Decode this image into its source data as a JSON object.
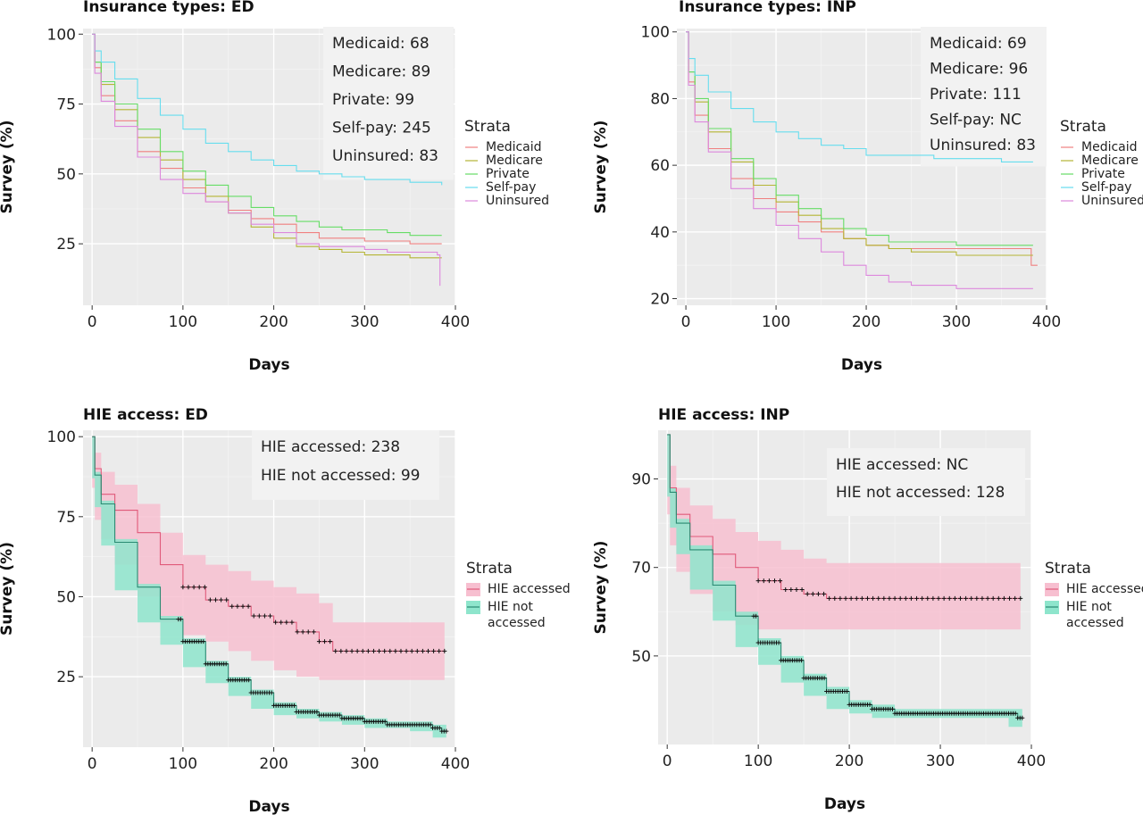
{
  "chart_data": [
    {
      "type": "line",
      "title": "Insurance types: ED",
      "xlabel": "Days",
      "ylabel": "Survey (%)",
      "xlim": [
        -10,
        400
      ],
      "ylim": [
        3,
        102
      ],
      "xticks": [
        0,
        100,
        200,
        300,
        400
      ],
      "yticks": [
        25,
        50,
        75,
        100
      ],
      "legend_title": "Strata",
      "legend_position": "right",
      "annotations": [
        "Medicaid: 68",
        "Medicare: 89",
        "Private: 99",
        "Self-pay: 245",
        "Uninsured: 83"
      ],
      "series": [
        {
          "name": "Medicaid",
          "color": "#f08080",
          "x": [
            0,
            3,
            10,
            25,
            50,
            75,
            100,
            125,
            150,
            175,
            200,
            225,
            250,
            275,
            300,
            325,
            350,
            385
          ],
          "y": [
            100,
            88,
            78,
            69,
            58,
            52,
            45,
            40,
            37,
            34,
            32,
            29,
            27,
            27,
            26,
            26,
            25,
            25
          ]
        },
        {
          "name": "Medicare",
          "color": "#b5b535",
          "x": [
            0,
            3,
            10,
            25,
            50,
            75,
            100,
            125,
            150,
            175,
            200,
            225,
            250,
            275,
            300,
            325,
            350,
            385
          ],
          "y": [
            100,
            90,
            82,
            73,
            63,
            55,
            48,
            42,
            36,
            31,
            27,
            24,
            23,
            22,
            21,
            21,
            20,
            20
          ]
        },
        {
          "name": "Private",
          "color": "#66dd66",
          "x": [
            0,
            3,
            10,
            25,
            50,
            75,
            100,
            125,
            150,
            175,
            200,
            225,
            250,
            275,
            300,
            325,
            350,
            385
          ],
          "y": [
            100,
            90,
            83,
            75,
            66,
            58,
            51,
            46,
            42,
            38,
            35,
            33,
            31,
            30,
            30,
            29,
            28,
            28
          ]
        },
        {
          "name": "Self-pay",
          "color": "#66ddee",
          "x": [
            0,
            3,
            10,
            25,
            50,
            75,
            100,
            125,
            150,
            175,
            200,
            225,
            250,
            275,
            300,
            325,
            350,
            385
          ],
          "y": [
            100,
            94,
            90,
            84,
            77,
            71,
            66,
            61,
            58,
            55,
            53,
            51,
            50,
            49,
            48,
            48,
            47,
            46
          ]
        },
        {
          "name": "Uninsured",
          "color": "#dd88dd",
          "x": [
            0,
            3,
            10,
            25,
            50,
            75,
            100,
            125,
            150,
            175,
            200,
            225,
            250,
            275,
            300,
            325,
            350,
            380,
            383
          ],
          "y": [
            100,
            86,
            76,
            67,
            56,
            48,
            43,
            40,
            36,
            32,
            29,
            25,
            24,
            24,
            23,
            22,
            22,
            21,
            10
          ]
        }
      ]
    },
    {
      "type": "line",
      "title": "Insurance types: INP",
      "xlabel": "Days",
      "ylabel": "Survey (%)",
      "xlim": [
        -10,
        400
      ],
      "ylim": [
        18,
        101
      ],
      "xticks": [
        0,
        100,
        200,
        300,
        400
      ],
      "yticks": [
        20,
        40,
        60,
        80,
        100
      ],
      "legend_title": "Strata",
      "legend_position": "right",
      "annotations": [
        "Medicaid: 69",
        "Medicare: 96",
        "Private: 111",
        "Self-pay: NC",
        "Uninsured: 83"
      ],
      "series": [
        {
          "name": "Medicaid",
          "color": "#f08080",
          "x": [
            0,
            3,
            10,
            25,
            50,
            75,
            100,
            125,
            150,
            175,
            200,
            225,
            250,
            275,
            300,
            325,
            350,
            380,
            383,
            390
          ],
          "y": [
            100,
            85,
            75,
            65,
            56,
            50,
            46,
            43,
            40,
            38,
            36,
            35,
            35,
            35,
            35,
            35,
            35,
            35,
            30,
            30
          ]
        },
        {
          "name": "Medicare",
          "color": "#b5b535",
          "x": [
            0,
            3,
            10,
            25,
            50,
            75,
            100,
            125,
            150,
            175,
            200,
            225,
            250,
            275,
            300,
            325,
            350,
            385
          ],
          "y": [
            100,
            88,
            79,
            70,
            61,
            54,
            49,
            45,
            41,
            38,
            36,
            35,
            34,
            34,
            33,
            33,
            33,
            33
          ]
        },
        {
          "name": "Private",
          "color": "#66dd66",
          "x": [
            0,
            3,
            10,
            25,
            50,
            75,
            100,
            125,
            150,
            175,
            200,
            225,
            250,
            275,
            300,
            325,
            350,
            385
          ],
          "y": [
            100,
            88,
            80,
            71,
            62,
            56,
            51,
            47,
            44,
            41,
            39,
            37,
            37,
            37,
            36,
            36,
            36,
            36
          ]
        },
        {
          "name": "Self-pay",
          "color": "#66ddee",
          "x": [
            0,
            3,
            10,
            25,
            50,
            75,
            100,
            125,
            150,
            175,
            200,
            225,
            250,
            275,
            300,
            325,
            350,
            385
          ],
          "y": [
            100,
            92,
            87,
            82,
            77,
            73,
            70,
            68,
            66,
            65,
            63,
            63,
            63,
            62,
            62,
            62,
            61,
            61
          ]
        },
        {
          "name": "Uninsured",
          "color": "#dd88dd",
          "x": [
            0,
            3,
            10,
            25,
            50,
            75,
            100,
            125,
            150,
            175,
            200,
            225,
            250,
            275,
            300,
            325,
            350,
            385
          ],
          "y": [
            100,
            84,
            73,
            64,
            53,
            47,
            42,
            38,
            34,
            30,
            27,
            25,
            24,
            24,
            23,
            23,
            23,
            23
          ]
        }
      ]
    },
    {
      "type": "line",
      "title": "HIE access: ED",
      "xlabel": "Days",
      "ylabel": "Survey (%)",
      "xlim": [
        -10,
        400
      ],
      "ylim": [
        3,
        102
      ],
      "xticks": [
        0,
        100,
        200,
        300,
        400
      ],
      "yticks": [
        25,
        50,
        75,
        100
      ],
      "legend_title": "Strata",
      "legend_position": "right",
      "annotations": [
        "HIE accessed: 238",
        "HIE not accessed: 99"
      ],
      "series": [
        {
          "name": "HIE accessed",
          "legend_lines": [
            "HIE accessed"
          ],
          "color": "#e05a7a",
          "fill": "#f7bfd0",
          "x": [
            0,
            3,
            10,
            25,
            50,
            75,
            100,
            125,
            150,
            175,
            200,
            225,
            250,
            265,
            275,
            300,
            325,
            350,
            388
          ],
          "y": [
            100,
            90,
            82,
            77,
            70,
            60,
            53,
            49,
            47,
            44,
            42,
            39,
            36,
            33,
            33,
            33,
            33,
            33,
            33
          ],
          "lower": [
            96,
            84,
            74,
            68,
            60,
            50,
            42,
            38,
            36,
            33,
            30,
            27,
            25,
            24,
            24,
            24,
            24,
            24,
            24
          ],
          "upper": [
            100,
            95,
            89,
            85,
            79,
            70,
            63,
            60,
            58,
            55,
            53,
            51,
            48,
            42,
            42,
            42,
            42,
            42,
            42
          ]
        },
        {
          "name": "HIE not accessed",
          "legend_lines": [
            "HIE not",
            "accessed"
          ],
          "color": "#2a8a72",
          "fill": "#8ee5cc",
          "x": [
            0,
            3,
            10,
            25,
            50,
            75,
            100,
            125,
            150,
            175,
            200,
            225,
            250,
            275,
            300,
            325,
            350,
            375,
            385,
            390
          ],
          "y": [
            100,
            88,
            79,
            67,
            53,
            43,
            36,
            29,
            24,
            20,
            16,
            14,
            13,
            12,
            11,
            10,
            10,
            9,
            8,
            8
          ],
          "lower": [
            100,
            87,
            78,
            66,
            52,
            42,
            35,
            28,
            23,
            19,
            15,
            13,
            12,
            11,
            10,
            9,
            9,
            8,
            6,
            6
          ],
          "upper": [
            100,
            89,
            80,
            68,
            54,
            44,
            37,
            30,
            25,
            21,
            17,
            15,
            14,
            13,
            12,
            11,
            11,
            10,
            10,
            10
          ]
        }
      ]
    },
    {
      "type": "line",
      "title": "HIE access: INP",
      "xlabel": "Days",
      "ylabel": "Survey (%)",
      "xlim": [
        -10,
        400
      ],
      "ylim": [
        30,
        101
      ],
      "xticks": [
        0,
        100,
        200,
        300,
        400
      ],
      "yticks": [
        50,
        70,
        90
      ],
      "legend_title": "Strata",
      "legend_position": "right",
      "annotations": [
        "HIE accessed: NC",
        "HIE not accessed: 128"
      ],
      "series": [
        {
          "name": "HIE accessed",
          "legend_lines": [
            "HIE accessed"
          ],
          "color": "#e05a7a",
          "fill": "#f7bfd0",
          "x": [
            0,
            3,
            10,
            25,
            50,
            75,
            100,
            125,
            150,
            175,
            200,
            225,
            250,
            275,
            300,
            325,
            350,
            388
          ],
          "y": [
            100,
            88,
            82,
            77,
            73,
            70,
            67,
            65,
            64,
            63,
            63,
            63,
            63,
            63,
            63,
            63,
            63,
            63
          ],
          "lower": [
            96,
            82,
            75,
            69,
            64,
            60,
            57,
            56,
            56,
            56,
            56,
            56,
            56,
            56,
            56,
            56,
            56,
            56
          ],
          "upper": [
            100,
            93,
            88,
            84,
            81,
            78,
            76,
            74,
            72,
            71,
            71,
            71,
            71,
            71,
            71,
            71,
            71,
            71
          ]
        },
        {
          "name": "HIE not accessed",
          "legend_lines": [
            "HIE not",
            "accessed"
          ],
          "color": "#2a8a72",
          "fill": "#8ee5cc",
          "x": [
            0,
            3,
            10,
            25,
            50,
            75,
            100,
            125,
            150,
            175,
            200,
            225,
            250,
            275,
            300,
            325,
            350,
            375,
            385,
            390
          ],
          "y": [
            100,
            87,
            80,
            74,
            66,
            59,
            53,
            49,
            45,
            42,
            39,
            38,
            37,
            37,
            37,
            37,
            37,
            37,
            36,
            36
          ],
          "lower": [
            100,
            86,
            79,
            73,
            65,
            58,
            52,
            48,
            44,
            41,
            38,
            37,
            36,
            36,
            36,
            36,
            36,
            36,
            34,
            34
          ],
          "upper": [
            100,
            88,
            81,
            75,
            67,
            60,
            54,
            50,
            46,
            43,
            40,
            39,
            38,
            38,
            38,
            38,
            38,
            38,
            38,
            38
          ]
        }
      ]
    }
  ]
}
